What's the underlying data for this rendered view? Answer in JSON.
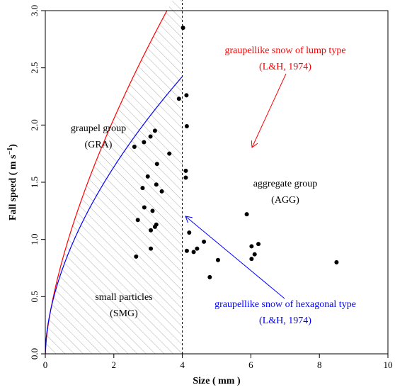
{
  "chart_data": {
    "type": "scatter",
    "xlabel": "Size ( mm )",
    "ylabel": "Fall speed ( m s",
    "ylabel_sup": "−1",
    "ylabel_close": ")",
    "xlim": [
      0,
      10
    ],
    "ylim": [
      0,
      3.0
    ],
    "x_ticks": [
      0,
      2,
      4,
      6,
      8,
      10
    ],
    "y_ticks": [
      0.0,
      0.5,
      1.0,
      1.5,
      2.0,
      2.5,
      3.0
    ],
    "y_tick_labels": [
      "0.0",
      "0.5",
      "1.0",
      "1.5",
      "2.0",
      "2.5",
      "3.0"
    ],
    "grid": false,
    "points": [
      {
        "x": 4.02,
        "y": 2.85
      },
      {
        "x": 4.12,
        "y": 2.26
      },
      {
        "x": 3.9,
        "y": 2.23
      },
      {
        "x": 4.13,
        "y": 1.99
      },
      {
        "x": 3.2,
        "y": 1.95
      },
      {
        "x": 3.07,
        "y": 1.9
      },
      {
        "x": 2.88,
        "y": 1.85
      },
      {
        "x": 2.6,
        "y": 1.81
      },
      {
        "x": 3.62,
        "y": 1.75
      },
      {
        "x": 3.26,
        "y": 1.66
      },
      {
        "x": 4.1,
        "y": 1.6
      },
      {
        "x": 2.99,
        "y": 1.55
      },
      {
        "x": 4.1,
        "y": 1.54
      },
      {
        "x": 3.24,
        "y": 1.48
      },
      {
        "x": 2.84,
        "y": 1.45
      },
      {
        "x": 3.4,
        "y": 1.42
      },
      {
        "x": 2.89,
        "y": 1.28
      },
      {
        "x": 3.13,
        "y": 1.25
      },
      {
        "x": 5.88,
        "y": 1.22
      },
      {
        "x": 2.7,
        "y": 1.17
      },
      {
        "x": 3.24,
        "y": 1.13
      },
      {
        "x": 3.2,
        "y": 1.11
      },
      {
        "x": 3.08,
        "y": 1.08
      },
      {
        "x": 4.2,
        "y": 1.06
      },
      {
        "x": 4.63,
        "y": 0.98
      },
      {
        "x": 6.22,
        "y": 0.96
      },
      {
        "x": 6.02,
        "y": 0.94
      },
      {
        "x": 4.43,
        "y": 0.92
      },
      {
        "x": 3.08,
        "y": 0.92
      },
      {
        "x": 4.13,
        "y": 0.9
      },
      {
        "x": 4.33,
        "y": 0.89
      },
      {
        "x": 6.11,
        "y": 0.87
      },
      {
        "x": 2.65,
        "y": 0.85
      },
      {
        "x": 6.02,
        "y": 0.83
      },
      {
        "x": 5.04,
        "y": 0.82
      },
      {
        "x": 8.5,
        "y": 0.8
      },
      {
        "x": 4.8,
        "y": 0.67
      }
    ],
    "curves": [
      {
        "name": "graupellike snow of lump type",
        "coef": 1.3,
        "exp": 0.66,
        "color": "#ff0000",
        "x_range": [
          0,
          10
        ]
      },
      {
        "name": "graupellike snow of hexagonal type",
        "coef": 1.1,
        "exp": 0.57,
        "color": "#0000ff",
        "x_range": [
          0,
          4
        ]
      }
    ],
    "divider_x": 4,
    "annotations": {
      "lump_title": "graupellike snow of lump type",
      "lump_ref": "(L&H, 1974)",
      "hex_title": "graupellike snow of hexagonal type",
      "hex_ref": "(L&H, 1974)",
      "graupel_title": "graupel group",
      "graupel_abbr": "(GRA)",
      "aggregate_title": "aggregate group",
      "aggregate_abbr": "(AGG)",
      "small_title": "small particles",
      "small_abbr": "(SMG)"
    },
    "colors": {
      "lump": "#ff0000",
      "hex": "#0000ff",
      "points": "#000000",
      "hatch": "#b0b0b0"
    }
  }
}
